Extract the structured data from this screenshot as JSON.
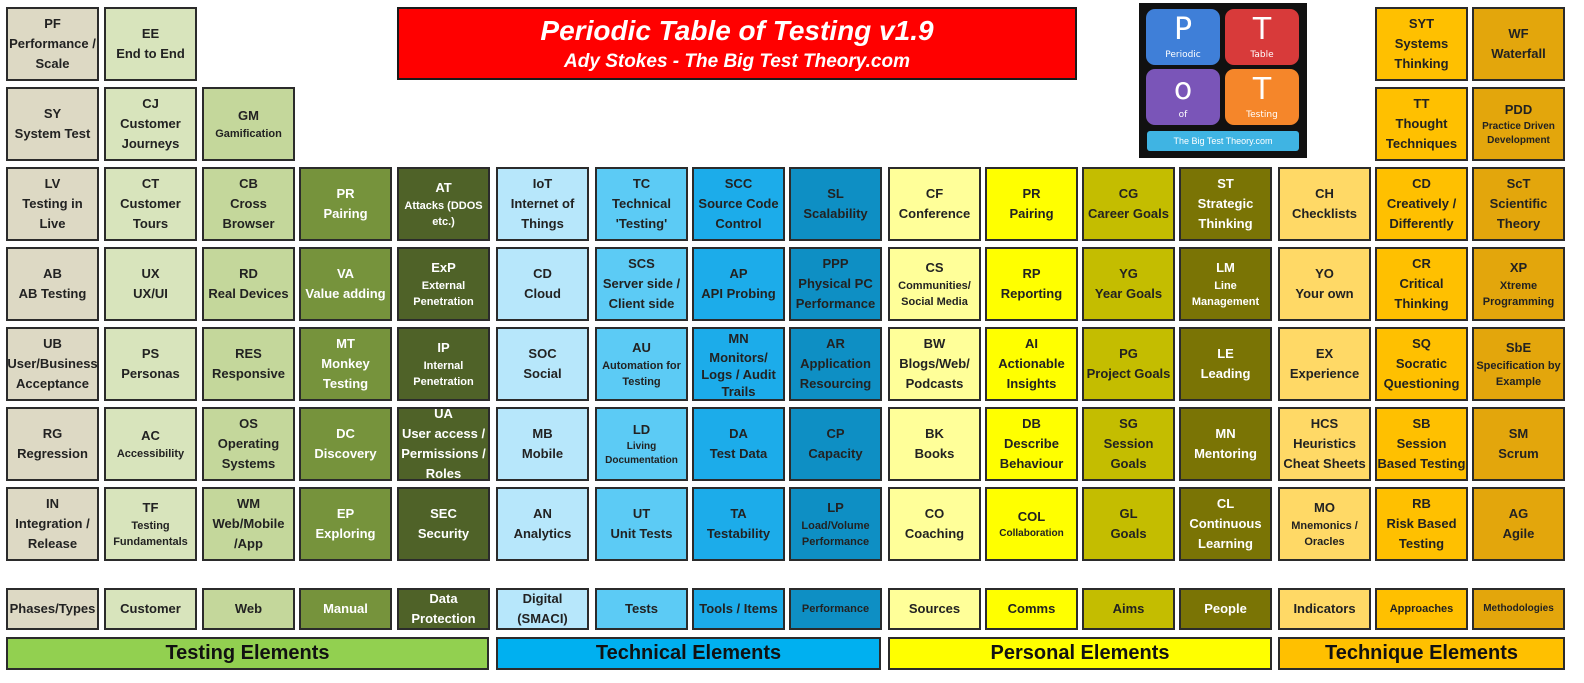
{
  "title": {
    "main": "Periodic Table of Testing v1.9",
    "subtitle": "Ady Stokes - The Big Test Theory.com"
  },
  "logo": {
    "tiles": [
      {
        "letter": "P",
        "word": "Periodic",
        "color": "#3f7fd8"
      },
      {
        "letter": "T",
        "word": "Table",
        "color": "#d83a3a"
      },
      {
        "letter": "o",
        "word": "of",
        "color": "#7a55b8"
      },
      {
        "letter": "T",
        "word": "Testing",
        "color": "#f5862a"
      }
    ],
    "banner": "The Big Test Theory.com"
  },
  "elements": {
    "pf": {
      "symbol": "PF",
      "name": "Performance / Scale"
    },
    "ee": {
      "symbol": "EE",
      "name": "End to End"
    },
    "syt": {
      "symbol": "SYT",
      "name": "Systems Thinking"
    },
    "wf": {
      "symbol": "WF",
      "name": "Waterfall"
    },
    "sy": {
      "symbol": "SY",
      "name": "System Test"
    },
    "cj": {
      "symbol": "CJ",
      "name": "Customer Journeys"
    },
    "gm": {
      "symbol": "GM",
      "name": "Gamification"
    },
    "tt": {
      "symbol": "TT",
      "name": "Thought Techniques"
    },
    "pdd": {
      "symbol": "PDD",
      "name": "Practice Driven Development"
    },
    "lv": {
      "symbol": "LV",
      "name": "Testing in Live"
    },
    "ct": {
      "symbol": "CT",
      "name": "Customer Tours"
    },
    "cb": {
      "symbol": "CB",
      "name": "Cross Browser"
    },
    "pr1": {
      "symbol": "PR",
      "name": "Pairing"
    },
    "at": {
      "symbol": "AT",
      "name": "Attacks (DDOS etc.)"
    },
    "iot": {
      "symbol": "IoT",
      "name": "Internet of Things"
    },
    "tc": {
      "symbol": "TC",
      "name": "Technical 'Testing'"
    },
    "scc": {
      "symbol": "SCC",
      "name": "Source Code Control"
    },
    "sl": {
      "symbol": "SL",
      "name": "Scalability"
    },
    "cf": {
      "symbol": "CF",
      "name": "Conference"
    },
    "pr2": {
      "symbol": "PR",
      "name": "Pairing"
    },
    "cg": {
      "symbol": "CG",
      "name": "Career Goals"
    },
    "st": {
      "symbol": "ST",
      "name": "Strategic Thinking"
    },
    "ch": {
      "symbol": "CH",
      "name": "Checklists"
    },
    "cd": {
      "symbol": "CD",
      "name": "Creatively / Differently"
    },
    "sct": {
      "symbol": "ScT",
      "name": "Scientific Theory"
    },
    "ab": {
      "symbol": "AB",
      "name": "AB Testing"
    },
    "ux": {
      "symbol": "UX",
      "name": "UX/UI"
    },
    "rd": {
      "symbol": "RD",
      "name": "Real Devices"
    },
    "va": {
      "symbol": "VA",
      "name": "Value adding"
    },
    "exp": {
      "symbol": "ExP",
      "name": "External Penetration"
    },
    "cdcl": {
      "symbol": "CD",
      "name": "Cloud"
    },
    "scs": {
      "symbol": "SCS",
      "name": "Server side / Client side"
    },
    "ap": {
      "symbol": "AP",
      "name": "API Probing"
    },
    "ppp": {
      "symbol": "PPP",
      "name": "Physical PC Performance"
    },
    "cs": {
      "symbol": "CS",
      "name": "Communities/ Social Media"
    },
    "rp": {
      "symbol": "RP",
      "name": "Reporting"
    },
    "yg": {
      "symbol": "YG",
      "name": "Year Goals"
    },
    "lm": {
      "symbol": "LM",
      "name": "Line Management"
    },
    "yo": {
      "symbol": "YO",
      "name": "Your own"
    },
    "cr": {
      "symbol": "CR",
      "name": "Critical Thinking"
    },
    "xp": {
      "symbol": "XP",
      "name": "Xtreme Programming"
    },
    "ub": {
      "symbol": "UB",
      "name": "User/Business Acceptance"
    },
    "ps": {
      "symbol": "PS",
      "name": "Personas"
    },
    "res": {
      "symbol": "RES",
      "name": "Responsive"
    },
    "mt": {
      "symbol": "MT",
      "name": "Monkey Testing"
    },
    "ip": {
      "symbol": "IP",
      "name": "Internal Penetration"
    },
    "soc": {
      "symbol": "SOC",
      "name": "Social"
    },
    "au": {
      "symbol": "AU",
      "name": "Automation for Testing"
    },
    "mn1": {
      "symbol": "MN",
      "name": "Monitors/ Logs / Audit Trails"
    },
    "ar": {
      "symbol": "AR",
      "name": "Application Resourcing"
    },
    "bw": {
      "symbol": "BW",
      "name": "Blogs/Web/ Podcasts"
    },
    "ai": {
      "symbol": "AI",
      "name": "Actionable Insights"
    },
    "pg": {
      "symbol": "PG",
      "name": "Project Goals"
    },
    "le": {
      "symbol": "LE",
      "name": "Leading"
    },
    "ex": {
      "symbol": "EX",
      "name": "Experience"
    },
    "sq": {
      "symbol": "SQ",
      "name": "Socratic Questioning"
    },
    "sbe": {
      "symbol": "SbE",
      "name": "Specification by Example"
    },
    "rg": {
      "symbol": "RG",
      "name": "Regression"
    },
    "ac": {
      "symbol": "AC",
      "name": "Accessibility"
    },
    "os": {
      "symbol": "OS",
      "name": "Operating Systems"
    },
    "dc": {
      "symbol": "DC",
      "name": "Discovery"
    },
    "ua": {
      "symbol": "UA",
      "name": "User access / Permissions / Roles"
    },
    "mb": {
      "symbol": "MB",
      "name": "Mobile"
    },
    "ld": {
      "symbol": "LD",
      "name": "Living Documentation"
    },
    "da": {
      "symbol": "DA",
      "name": "Test Data"
    },
    "cp": {
      "symbol": "CP",
      "name": "Capacity"
    },
    "bk": {
      "symbol": "BK",
      "name": "Books"
    },
    "db": {
      "symbol": "DB",
      "name": "Describe Behaviour"
    },
    "sg": {
      "symbol": "SG",
      "name": "Session Goals"
    },
    "mn2": {
      "symbol": "MN",
      "name": "Mentoring"
    },
    "hcs": {
      "symbol": "HCS",
      "name": "Heuristics Cheat Sheets"
    },
    "sb": {
      "symbol": "SB",
      "name": "Session Based Testing"
    },
    "sm": {
      "symbol": "SM",
      "name": "Scrum"
    },
    "in": {
      "symbol": "IN",
      "name": "Integration / Release"
    },
    "tf": {
      "symbol": "TF",
      "name": "Testing Fundamentals"
    },
    "wm": {
      "symbol": "WM",
      "name": "Web/Mobile /App"
    },
    "ep": {
      "symbol": "EP",
      "name": "Exploring"
    },
    "sec": {
      "symbol": "SEC",
      "name": "Security"
    },
    "an": {
      "symbol": "AN",
      "name": "Analytics"
    },
    "ut": {
      "symbol": "UT",
      "name": "Unit Tests"
    },
    "ta": {
      "symbol": "TA",
      "name": "Testability"
    },
    "lp": {
      "symbol": "LP",
      "name": "Load/Volume Performance"
    },
    "co": {
      "symbol": "CO",
      "name": "Coaching"
    },
    "col": {
      "symbol": "COL",
      "name": "Collaboration"
    },
    "gl": {
      "symbol": "GL",
      "name": "Goals"
    },
    "cl": {
      "symbol": "CL",
      "name": "Continuous Learning"
    },
    "mo": {
      "symbol": "MO",
      "name": "Mnemonics / Oracles"
    },
    "rb": {
      "symbol": "RB",
      "name": "Risk Based Testing"
    },
    "ag": {
      "symbol": "AG",
      "name": "Agile"
    }
  },
  "legend": [
    "Phases/Types",
    "Customer",
    "Web",
    "Manual",
    "Data Protection",
    "Digital (SMACI)",
    "Tests",
    "Tools / Items",
    "Performance",
    "Sources",
    "Comms",
    "Aims",
    "People",
    "Indicators",
    "Approaches",
    "Methodologies"
  ],
  "groups": [
    {
      "label": "Testing Elements",
      "color": "#92d050"
    },
    {
      "label": "Technical Elements",
      "color": "#00b0f0"
    },
    {
      "label": "Personal Elements",
      "color": "#ffff00"
    },
    {
      "label": "Technique Elements",
      "color": "#ffc000"
    }
  ]
}
